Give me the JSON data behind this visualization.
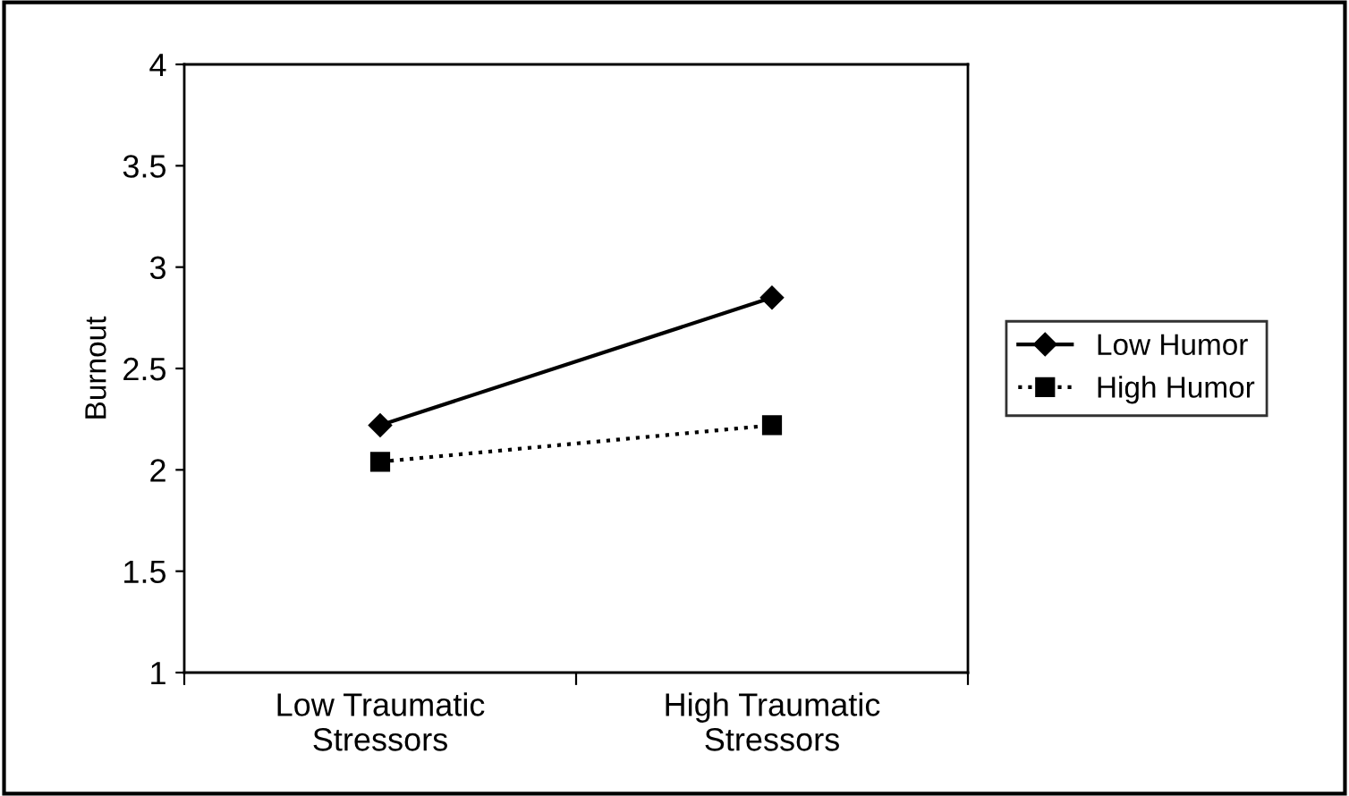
{
  "chart_data": {
    "type": "line",
    "ylabel": "Burnout",
    "categories": [
      "Low Traumatic\nStressors",
      "High Traumatic\nStressors"
    ],
    "series": [
      {
        "name": "Low Humor",
        "color": "#000000",
        "values": [
          2.22,
          2.85
        ],
        "marker": "diamond",
        "line_style": "solid"
      },
      {
        "name": "High Humor",
        "color": "#000000",
        "values": [
          2.04,
          2.22
        ],
        "marker": "square",
        "line_style": "dotted"
      }
    ],
    "ylim": [
      1,
      4
    ],
    "yticks": [
      1,
      1.5,
      2,
      2.5,
      3,
      3.5,
      4
    ],
    "grid": false,
    "legend": "right"
  }
}
